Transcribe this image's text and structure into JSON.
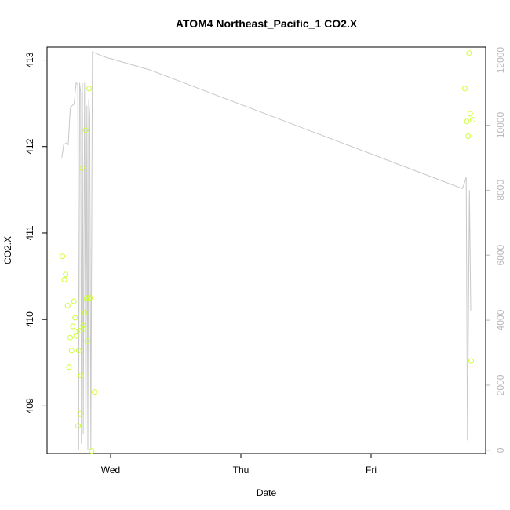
{
  "chart_data": {
    "type": "scatter",
    "title": "ATOM4 Northeast_Pacific_1 CO2.X",
    "xlabel": "Date",
    "ylabel": "CO2.X",
    "x_ticks": [
      "Wed",
      "Thu",
      "Fri"
    ],
    "y_left_ticks": [
      409,
      410,
      411,
      412,
      413
    ],
    "y_right_ticks": [
      0,
      2000,
      4000,
      6000,
      8000,
      10000,
      12000
    ],
    "y_left_range": [
      408.45,
      413.15
    ],
    "y_right_range": [
      -100,
      12400
    ],
    "grid": false,
    "colors": {
      "points": "#ccff33",
      "line": "#c8c8c8",
      "right_axis": "#b8b8b8",
      "frame": "#000000"
    },
    "series": [
      {
        "axis": "left",
        "style": "open-circle",
        "points": [
          [
            -0.37,
            410.73
          ],
          [
            -0.355,
            410.46
          ],
          [
            -0.345,
            410.52
          ],
          [
            -0.33,
            410.16
          ],
          [
            -0.32,
            409.45
          ],
          [
            -0.31,
            409.79
          ],
          [
            -0.3,
            409.64
          ],
          [
            -0.29,
            409.92
          ],
          [
            -0.282,
            410.21
          ],
          [
            -0.273,
            410.02
          ],
          [
            -0.265,
            409.81
          ],
          [
            -0.258,
            409.86
          ],
          [
            -0.25,
            408.77
          ],
          [
            -0.245,
            409.64
          ],
          [
            -0.24,
            409.87
          ],
          [
            -0.235,
            408.91
          ],
          [
            -0.228,
            409.35
          ],
          [
            -0.22,
            411.75
          ],
          [
            -0.212,
            409.93
          ],
          [
            -0.205,
            409.89
          ],
          [
            -0.198,
            410.08
          ],
          [
            -0.192,
            412.19
          ],
          [
            -0.185,
            410.24
          ],
          [
            -0.18,
            409.75
          ],
          [
            -0.174,
            410.25
          ],
          [
            -0.165,
            412.67
          ],
          [
            -0.158,
            410.25
          ],
          [
            -0.145,
            408.48
          ],
          [
            -0.125,
            409.16
          ],
          [
            2.72,
            412.67
          ],
          [
            2.735,
            412.29
          ],
          [
            2.745,
            412.12
          ],
          [
            2.752,
            413.08
          ],
          [
            2.76,
            412.38
          ],
          [
            2.768,
            409.52
          ],
          [
            2.78,
            412.31
          ]
        ]
      },
      {
        "axis": "right",
        "style": "line",
        "points": [
          [
            -0.375,
            9000
          ],
          [
            -0.36,
            9400
          ],
          [
            -0.34,
            9450
          ],
          [
            -0.325,
            9400
          ],
          [
            -0.31,
            10500
          ],
          [
            -0.295,
            10600
          ],
          [
            -0.28,
            10650
          ],
          [
            -0.265,
            11300
          ],
          [
            -0.252,
            11250
          ],
          [
            -0.245,
            0
          ],
          [
            -0.238,
            11300
          ],
          [
            -0.23,
            11000
          ],
          [
            -0.224,
            200
          ],
          [
            -0.217,
            11300
          ],
          [
            -0.21,
            500
          ],
          [
            -0.2,
            11300
          ],
          [
            -0.19,
            100
          ],
          [
            -0.182,
            10600
          ],
          [
            -0.175,
            0
          ],
          [
            -0.168,
            10800
          ],
          [
            -0.16,
            10300
          ],
          [
            -0.152,
            0
          ],
          [
            -0.14,
            12250
          ],
          [
            -0.05,
            12100
          ],
          [
            0.3,
            11700
          ],
          [
            2.7,
            8050
          ],
          [
            2.715,
            8200
          ],
          [
            2.73,
            8400
          ],
          [
            2.74,
            300
          ],
          [
            2.755,
            8000
          ],
          [
            2.765,
            4300
          ]
        ]
      }
    ]
  }
}
